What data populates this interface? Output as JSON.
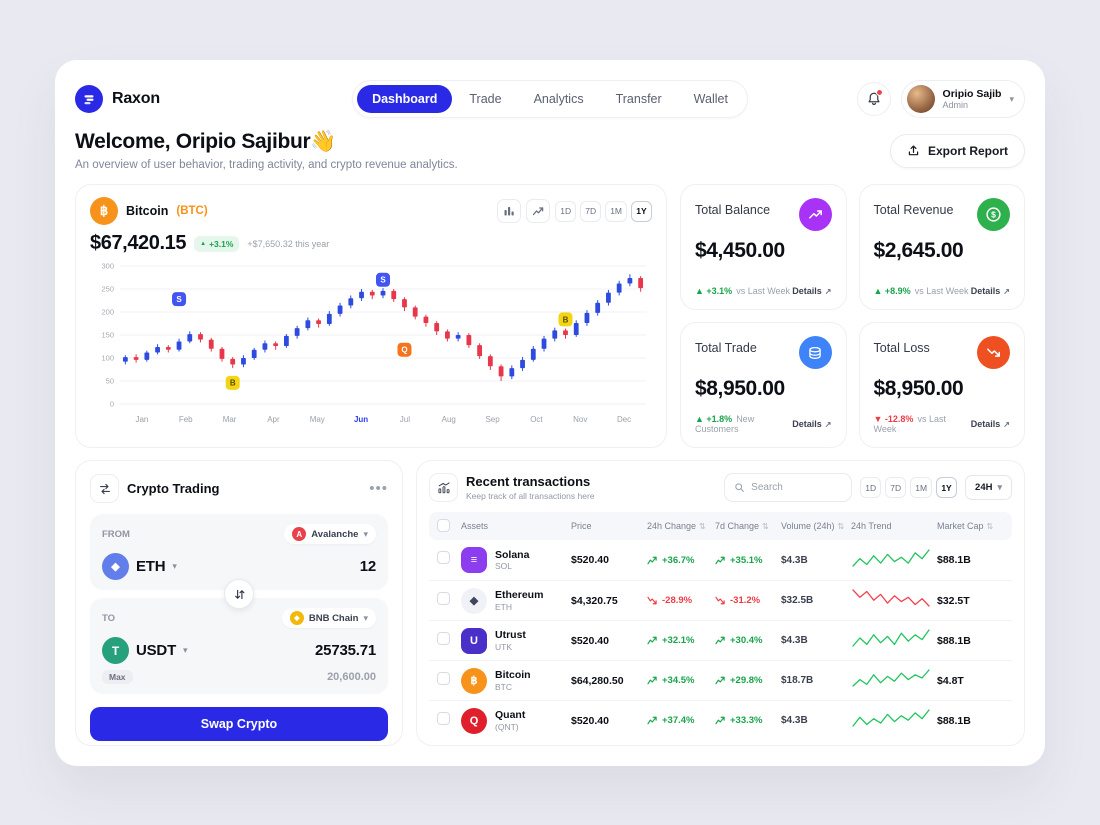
{
  "theme": {
    "accent": "#2a2ae6",
    "green": "#17a44a",
    "red": "#ee3b46",
    "candle_up": "#2e4be0",
    "candle_down": "#e8374a"
  },
  "icons": {
    "up": "▲",
    "down": "▼",
    "sort": "⇅",
    "details_arrow": "↗",
    "chevron": "▾",
    "ellipsis": "•••"
  },
  "header": {
    "brand": "Raxon",
    "nav": [
      {
        "label": "Dashboard",
        "active": true
      },
      {
        "label": "Trade",
        "active": false
      },
      {
        "label": "Analytics",
        "active": false
      },
      {
        "label": "Transfer",
        "active": false
      },
      {
        "label": "Wallet",
        "active": false
      }
    ],
    "user": {
      "name": "Oripio Sajib",
      "role": "Admin"
    }
  },
  "welcome": {
    "title": "Welcome, Oripio Sajibur👋",
    "subtitle": "An overview of user behavior, trading activity, and crypto revenue analytics.",
    "export_label": "Export Report"
  },
  "market_chart": {
    "asset_name": "Bitcoin",
    "asset_symbol": "(BTC)",
    "asset_glyph": "฿",
    "price": "$67,420.15",
    "change_badge": "+3.1%",
    "change_note": "+$7,650.32 this year",
    "ranges": [
      "1D",
      "7D",
      "1M",
      "1Y"
    ],
    "active_range": "1Y",
    "chart_data": {
      "type": "candlestick",
      "months": [
        "Jan",
        "Feb",
        "Mar",
        "Apr",
        "May",
        "Jun",
        "Jul",
        "Aug",
        "Sep",
        "Oct",
        "Nov",
        "Dec"
      ],
      "highlight_month": "Jun",
      "ylim": [
        0,
        300
      ],
      "yticks": [
        0,
        50,
        100,
        150,
        200,
        250,
        300
      ],
      "candles": [
        [
          92,
          102,
          86,
          106
        ],
        [
          102,
          96,
          90,
          108
        ],
        [
          96,
          112,
          92,
          116
        ],
        [
          112,
          124,
          108,
          130
        ],
        [
          124,
          118,
          112,
          128
        ],
        [
          118,
          136,
          114,
          142
        ],
        [
          136,
          152,
          132,
          158
        ],
        [
          152,
          140,
          134,
          156
        ],
        [
          140,
          120,
          114,
          144
        ],
        [
          120,
          98,
          92,
          124
        ],
        [
          98,
          86,
          78,
          102
        ],
        [
          86,
          100,
          80,
          106
        ],
        [
          100,
          118,
          96,
          122
        ],
        [
          118,
          132,
          112,
          138
        ],
        [
          132,
          126,
          118,
          136
        ],
        [
          126,
          148,
          122,
          152
        ],
        [
          148,
          165,
          142,
          170
        ],
        [
          165,
          182,
          160,
          188
        ],
        [
          182,
          174,
          166,
          186
        ],
        [
          174,
          196,
          170,
          202
        ],
        [
          196,
          214,
          190,
          220
        ],
        [
          214,
          230,
          208,
          236
        ],
        [
          230,
          244,
          224,
          250
        ],
        [
          244,
          236,
          228,
          248
        ],
        [
          236,
          246,
          230,
          252
        ],
        [
          246,
          228,
          222,
          250
        ],
        [
          228,
          210,
          202,
          232
        ],
        [
          210,
          190,
          184,
          214
        ],
        [
          190,
          176,
          168,
          194
        ],
        [
          176,
          158,
          150,
          180
        ],
        [
          158,
          142,
          136,
          162
        ],
        [
          142,
          150,
          136,
          156
        ],
        [
          150,
          128,
          122,
          154
        ],
        [
          128,
          104,
          98,
          132
        ],
        [
          104,
          82,
          74,
          108
        ],
        [
          82,
          60,
          50,
          86
        ],
        [
          60,
          78,
          54,
          84
        ],
        [
          78,
          96,
          72,
          102
        ],
        [
          96,
          120,
          92,
          126
        ],
        [
          120,
          142,
          114,
          148
        ],
        [
          142,
          160,
          136,
          166
        ],
        [
          160,
          150,
          142,
          164
        ],
        [
          150,
          176,
          146,
          182
        ],
        [
          176,
          198,
          170,
          204
        ],
        [
          198,
          220,
          192,
          226
        ],
        [
          220,
          242,
          214,
          248
        ],
        [
          242,
          262,
          236,
          268
        ],
        [
          262,
          274,
          256,
          282
        ],
        [
          274,
          252,
          244,
          278
        ]
      ],
      "markers": [
        {
          "index": 5,
          "value": 228,
          "label": "S",
          "color": "#4355f0",
          "text_color": "#ffffff"
        },
        {
          "index": 10,
          "value": 46,
          "label": "B",
          "color": "#f3d516",
          "text_color": "#5b4d00"
        },
        {
          "index": 24,
          "value": 270,
          "label": "S",
          "color": "#4355f0",
          "text_color": "#ffffff"
        },
        {
          "index": 26,
          "value": 118,
          "label": "Q",
          "color": "#f4751f",
          "text_color": "#ffffff"
        },
        {
          "index": 41,
          "value": 184,
          "label": "B",
          "color": "#f3d516",
          "text_color": "#5b4d00"
        }
      ]
    }
  },
  "stats": [
    {
      "title": "Total Balance",
      "value": "$4,450.00",
      "change": "+3.1%",
      "dir": "up",
      "note": "vs Last Week",
      "details": "Details",
      "icon": "trend-up-icon",
      "icon_bg": "#a832f5"
    },
    {
      "title": "Total Revenue",
      "value": "$2,645.00",
      "change": "+8.9%",
      "dir": "up",
      "note": "vs Last Week",
      "details": "Details",
      "icon": "dollar-circle-icon",
      "icon_bg": "#2eb04d"
    },
    {
      "title": "Total Trade",
      "value": "$8,950.00",
      "change": "+1.8%",
      "dir": "up",
      "note": "New Customers",
      "details": "Details",
      "icon": "coins-icon",
      "icon_bg": "#3e83f8"
    },
    {
      "title": "Total Loss",
      "value": "$8,950.00",
      "change": "-12.8%",
      "dir": "down",
      "note": "vs Last Week",
      "details": "Details",
      "icon": "trend-down-icon",
      "icon_bg": "#ee5022"
    }
  ],
  "swap": {
    "title": "Crypto Trading",
    "from": {
      "label": "FROM",
      "network": "Avalanche",
      "network_glyph": "A",
      "token": "ETH",
      "token_glyph": "◆",
      "amount": "12"
    },
    "to": {
      "label": "TO",
      "network": "BNB Chain",
      "network_glyph": "◆",
      "token": "USDT",
      "token_glyph": "T",
      "amount": "25735.71",
      "max_label": "Max",
      "secondary_amount": "20,600.00"
    },
    "button_label": "Swap Crypto"
  },
  "transactions": {
    "title": "Recent transactions",
    "subtitle": "Keep track of all transactions here",
    "search_placeholder": "Search",
    "ranges": [
      "1D",
      "7D",
      "1M",
      "1Y"
    ],
    "active_range": "1Y",
    "period_label": "24H",
    "columns": [
      {
        "label": "Assets",
        "sortable": false
      },
      {
        "label": "Price",
        "sortable": false
      },
      {
        "label": "24h Change",
        "sortable": true
      },
      {
        "label": "7d Change",
        "sortable": true
      },
      {
        "label": "Volume (24h)",
        "sortable": true
      },
      {
        "label": "24h Trend",
        "sortable": false
      },
      {
        "label": "Market Cap",
        "sortable": true
      }
    ],
    "rows": [
      {
        "name": "Solana",
        "symbol": "SOL",
        "icon_glyph": "≡",
        "icon_bg": "#8c3df0",
        "icon_color": "#ffffff",
        "icon_shape": "square",
        "price": "$520.40",
        "change_24h": "+36.7%",
        "change_7d": "+35.1%",
        "dir": "up",
        "volume": "$4.3B",
        "market_cap": "$88.1B",
        "trend": [
          4,
          9,
          5,
          11,
          6,
          12,
          7,
          10,
          6,
          13,
          9,
          15
        ]
      },
      {
        "name": "Ethereum",
        "symbol": "ETH",
        "icon_glyph": "◆",
        "icon_bg": "#f1f2f7",
        "icon_color": "#3f4660",
        "icon_shape": "circle",
        "price": "$4,320.75",
        "change_24h": "-28.9%",
        "change_7d": "-31.2%",
        "dir": "down",
        "volume": "$32.5B",
        "market_cap": "$32.5T",
        "trend": [
          13,
          8,
          12,
          6,
          10,
          4,
          9,
          5,
          8,
          3,
          7,
          2
        ]
      },
      {
        "name": "Utrust",
        "symbol": "UTK",
        "icon_glyph": "U",
        "icon_bg": "#4a30c8",
        "icon_color": "#ffffff",
        "icon_shape": "square",
        "price": "$520.40",
        "change_24h": "+32.1%",
        "change_7d": "+30.4%",
        "dir": "up",
        "volume": "$4.3B",
        "market_cap": "$88.1B",
        "trend": [
          5,
          10,
          6,
          12,
          7,
          11,
          6,
          13,
          8,
          12,
          9,
          15
        ]
      },
      {
        "name": "Bitcoin",
        "symbol": "BTC",
        "icon_glyph": "฿",
        "icon_bg": "#f7931a",
        "icon_color": "#ffffff",
        "icon_shape": "circle",
        "price": "$64,280.50",
        "change_24h": "+34.5%",
        "change_7d": "+29.8%",
        "dir": "up",
        "volume": "$18.7B",
        "market_cap": "$4.8T",
        "trend": [
          6,
          10,
          7,
          13,
          8,
          12,
          9,
          14,
          10,
          13,
          11,
          16
        ]
      },
      {
        "name": "Quant",
        "symbol": "(QNT)",
        "icon_glyph": "Q",
        "icon_bg": "#e01f2d",
        "icon_color": "#ffffff",
        "icon_shape": "circle",
        "price": "$520.40",
        "change_24h": "+37.4%",
        "change_7d": "+33.3%",
        "dir": "up",
        "volume": "$4.3B",
        "market_cap": "$88.1B",
        "trend": [
          5,
          11,
          6,
          10,
          7,
          13,
          8,
          12,
          9,
          14,
          10,
          16
        ]
      }
    ]
  }
}
